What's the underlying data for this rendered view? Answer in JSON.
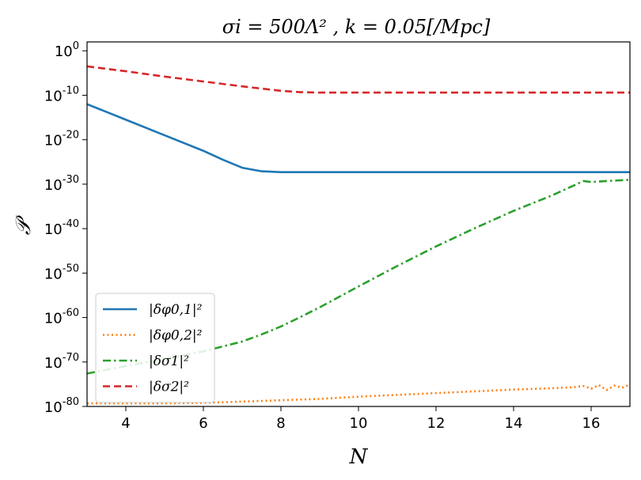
{
  "chart_data": {
    "type": "line",
    "title": "σi = 500Λ² , k = 0.05[/Mpc]",
    "xlabel": "N",
    "ylabel": "𝒫",
    "x_ticks": [
      "4",
      "6",
      "8",
      "10",
      "12",
      "14",
      "16"
    ],
    "y_ticks": [
      {
        "base": "10",
        "exp": "0"
      },
      {
        "base": "10",
        "exp": "-10"
      },
      {
        "base": "10",
        "exp": "-20"
      },
      {
        "base": "10",
        "exp": "-30"
      },
      {
        "base": "10",
        "exp": "-40"
      },
      {
        "base": "10",
        "exp": "-50"
      },
      {
        "base": "10",
        "exp": "-60"
      },
      {
        "base": "10",
        "exp": "-70"
      },
      {
        "base": "10",
        "exp": "-80"
      }
    ],
    "xlim": [
      3,
      17
    ],
    "ylim_log10": [
      -80,
      2
    ],
    "yscale": "log",
    "grid": false,
    "legend_position": "lower-left",
    "series": [
      {
        "name": "|δφ0,1|²",
        "color": "#1f77b4",
        "style": "solid",
        "x": [
          3,
          4,
          5,
          6,
          6.5,
          7,
          7.5,
          8,
          8.5,
          9,
          10,
          12,
          14,
          16,
          17
        ],
        "y_log10": [
          -12,
          -15.5,
          -19,
          -22.5,
          -24.5,
          -26.3,
          -27.1,
          -27.3,
          -27.3,
          -27.3,
          -27.3,
          -27.3,
          -27.3,
          -27.3,
          -27.3
        ]
      },
      {
        "name": "|δφ0,2|²",
        "color": "#ff7f0e",
        "style": "dotted",
        "x": [
          3,
          4,
          5,
          6,
          7,
          8,
          9,
          10,
          11,
          12,
          13,
          14,
          15,
          15.5,
          15.8,
          16,
          16.2,
          16.4,
          16.6,
          16.8,
          17
        ],
        "y_log10": [
          -79.3,
          -79.3,
          -79.3,
          -79.2,
          -78.9,
          -78.6,
          -78.3,
          -77.8,
          -77.4,
          -77,
          -76.6,
          -76.2,
          -75.9,
          -75.7,
          -75.4,
          -76,
          -75.2,
          -76.3,
          -75.3,
          -75.8,
          -75.1
        ]
      },
      {
        "name": "|δσ1|²",
        "color": "#2ca02c",
        "style": "dashdot",
        "x": [
          3,
          4,
          5,
          6,
          7,
          7.5,
          8,
          8.5,
          9,
          10,
          11,
          12,
          13,
          14,
          15,
          15.8,
          16,
          17
        ],
        "y_log10": [
          -72.6,
          -70.9,
          -69.3,
          -67.6,
          -65.4,
          -63.8,
          -62,
          -59.9,
          -57.7,
          -53,
          -48.4,
          -44,
          -39.9,
          -36,
          -32.5,
          -29.3,
          -29.5,
          -29
        ]
      },
      {
        "name": "|δσ2|²",
        "color": "#d62728",
        "style": "dashed",
        "x": [
          3,
          4,
          5,
          6,
          7,
          8,
          8.5,
          9,
          10,
          12,
          14,
          16,
          17
        ],
        "y_log10": [
          -3.5,
          -4.6,
          -5.8,
          -6.9,
          -8,
          -9,
          -9.3,
          -9.4,
          -9.4,
          -9.4,
          -9.4,
          -9.4,
          -9.4
        ]
      }
    ]
  }
}
